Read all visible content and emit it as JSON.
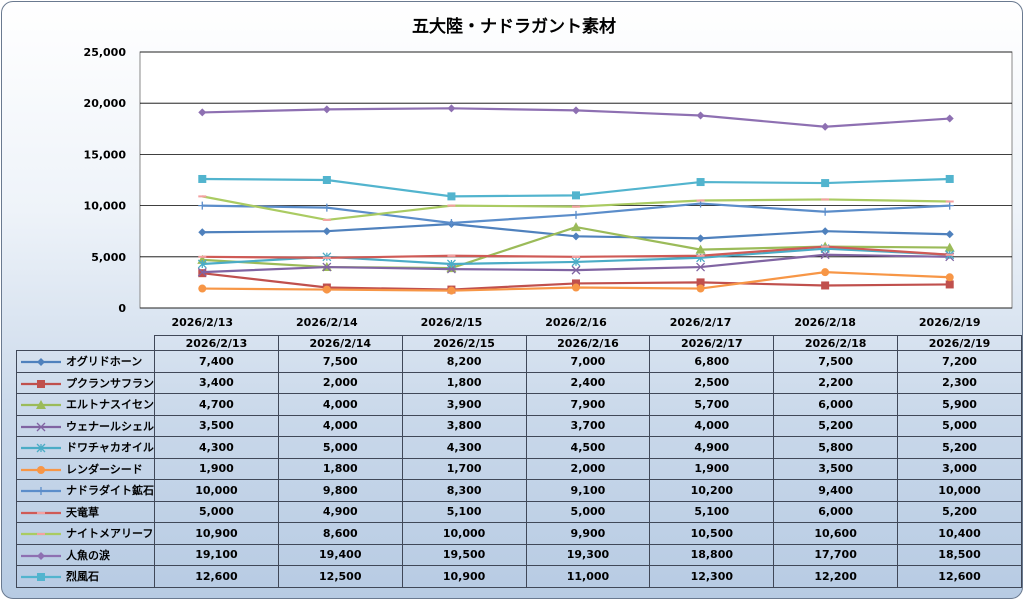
{
  "chart_data": {
    "type": "line",
    "title": "五大陸・ナドラガント素材",
    "categories": [
      "2026/2/13",
      "2026/2/14",
      "2026/2/15",
      "2026/2/16",
      "2026/2/17",
      "2026/2/18",
      "2026/2/19"
    ],
    "ylim": [
      0,
      25000
    ],
    "yticks": [
      "0",
      "5,000",
      "10,000",
      "15,000",
      "20,000",
      "25,000"
    ],
    "grid": true,
    "legend": "data-table",
    "series": [
      {
        "name": "オグリドホーン",
        "color": "#4F81BD",
        "marker": "diamond",
        "values": [
          7400,
          7500,
          8200,
          7000,
          6800,
          7500,
          7200
        ]
      },
      {
        "name": "プクランサフラン",
        "color": "#C0504D",
        "marker": "square",
        "values": [
          3400,
          2000,
          1800,
          2400,
          2500,
          2200,
          2300
        ]
      },
      {
        "name": "エルトナスイセン",
        "color": "#9BBB59",
        "marker": "triangle",
        "values": [
          4700,
          4000,
          3900,
          7900,
          5700,
          6000,
          5900
        ]
      },
      {
        "name": "ウェナールシェル",
        "color": "#8064A2",
        "marker": "x",
        "values": [
          3500,
          4000,
          3800,
          3700,
          4000,
          5200,
          5000
        ]
      },
      {
        "name": "ドワチャカオイル",
        "color": "#4BACC6",
        "marker": "star",
        "values": [
          4300,
          5000,
          4300,
          4500,
          4900,
          5800,
          5200
        ]
      },
      {
        "name": "レンダーシード",
        "color": "#F79646",
        "marker": "circle",
        "values": [
          1900,
          1800,
          1700,
          2000,
          1900,
          3500,
          3000
        ]
      },
      {
        "name": "ナドラダイト鉱石",
        "color": "#5B8DCA",
        "marker": "plus",
        "values": [
          10000,
          9800,
          8300,
          9100,
          10200,
          9400,
          10000
        ]
      },
      {
        "name": "天竜草",
        "color": "#CF5A56",
        "marker": "dash",
        "values": [
          5000,
          4900,
          5100,
          5000,
          5100,
          6000,
          5200
        ]
      },
      {
        "name": "ナイトメアリーフ",
        "color": "#AACB62",
        "marker": "dash",
        "values": [
          10900,
          8600,
          10000,
          9900,
          10500,
          10600,
          10400
        ]
      },
      {
        "name": "人魚の涙",
        "color": "#8E70B2",
        "marker": "diamond",
        "values": [
          19100,
          19400,
          19500,
          19300,
          18800,
          17700,
          18500
        ]
      },
      {
        "name": "烈風石",
        "color": "#52B4CE",
        "marker": "square",
        "values": [
          12600,
          12500,
          10900,
          11000,
          12300,
          12200,
          12600
        ]
      }
    ]
  }
}
